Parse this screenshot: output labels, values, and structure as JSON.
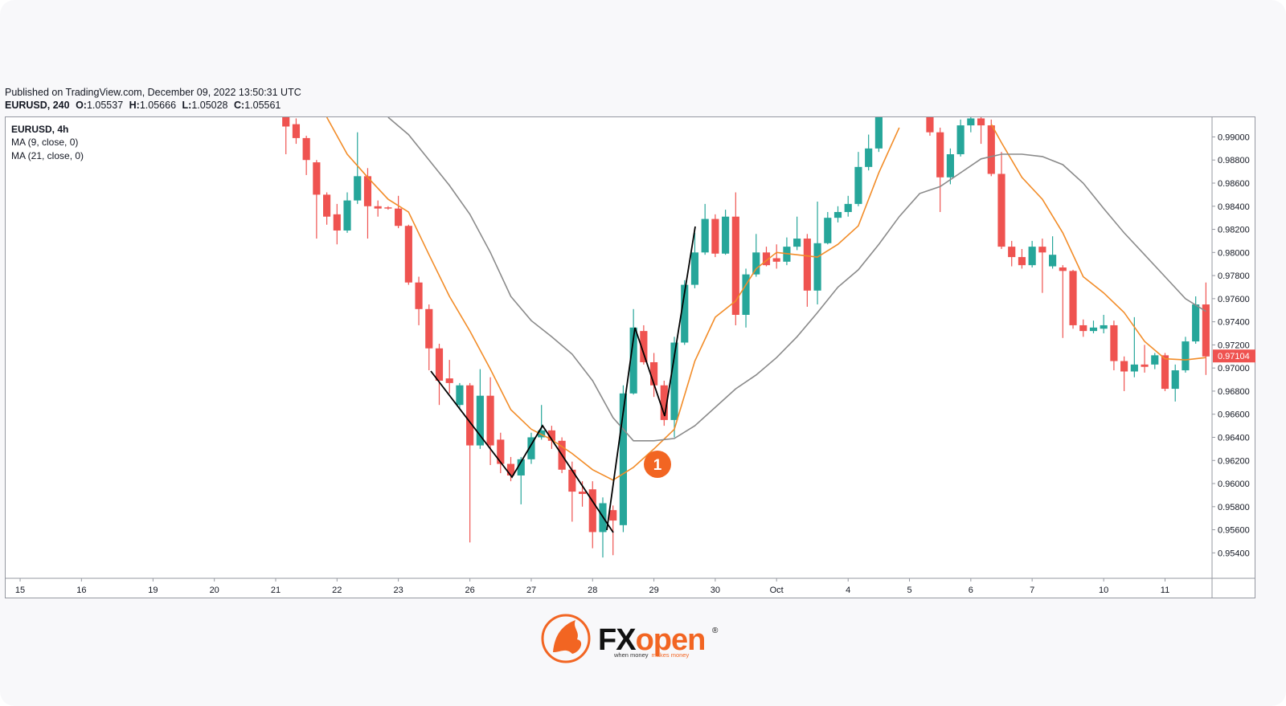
{
  "header": {
    "published": "Published on TradingView.com, December 09, 2022 13:50:31 UTC",
    "symbol_line": "EURUSD, 240",
    "ohlc": [
      {
        "key": "O:",
        "value": "1.05537"
      },
      {
        "key": "H:",
        "value": "1.05666"
      },
      {
        "key": "L:",
        "value": "1.05028"
      },
      {
        "key": "C:",
        "value": "1.05561"
      }
    ]
  },
  "chart_data": {
    "type": "candlestick",
    "symbol": "EURUSD, 4h",
    "x": [
      26,
      27,
      28,
      29,
      30,
      31,
      32,
      33,
      34,
      35,
      36,
      37,
      38,
      39,
      40,
      41,
      42,
      43,
      44,
      45,
      46,
      47,
      48,
      49,
      50,
      51,
      52,
      53,
      54,
      55,
      56,
      57,
      58,
      59,
      60,
      61,
      62,
      63,
      64,
      65,
      66,
      67,
      68,
      69,
      70,
      71,
      72,
      73,
      74,
      75,
      76,
      77,
      78,
      79,
      80,
      81,
      82,
      83,
      84,
      89,
      90,
      91,
      92,
      93,
      94,
      95,
      96,
      97,
      98,
      99,
      100,
      101,
      102,
      103,
      104,
      105,
      106,
      107,
      108,
      109,
      110,
      111,
      112,
      113,
      114,
      115,
      116
    ],
    "open": [
      0.9922,
      0.9911,
      0.9899,
      0.9878,
      0.985,
      0.9833,
      0.9819,
      0.9845,
      0.9866,
      0.984,
      0.9839,
      0.9838,
      0.9823,
      0.9774,
      0.9751,
      0.9717,
      0.9691,
      0.9668,
      0.9685,
      0.9633,
      0.9676,
      0.9638,
      0.9617,
      0.9607,
      0.9621,
      0.964,
      0.9646,
      0.9637,
      0.9612,
      0.9593,
      0.9595,
      0.9558,
      0.9577,
      0.9564,
      0.9678,
      0.9732,
      0.9705,
      0.9685,
      0.9655,
      0.9722,
      0.9772,
      0.98,
      0.9829,
      0.9799,
      0.9831,
      0.9746,
      0.9781,
      0.98,
      0.9795,
      0.9792,
      0.9805,
      0.9812,
      0.9767,
      0.9808,
      0.983,
      0.9835,
      0.9842,
      0.9874,
      0.989,
      0.9922,
      0.9904,
      0.9865,
      0.9885,
      0.991,
      0.9916,
      0.991,
      0.9868,
      0.9805,
      0.9796,
      0.9789,
      0.9805,
      0.9788,
      0.9787,
      0.9784,
      0.9737,
      0.9732,
      0.9734,
      0.9737,
      0.9706,
      0.9697,
      0.9703,
      0.9703,
      0.9711,
      0.9682,
      0.9698,
      0.9723,
      0.9755
    ],
    "high": [
      0.9928,
      0.9916,
      0.9901,
      0.988,
      0.9852,
      0.9842,
      0.9852,
      0.9904,
      0.9873,
      0.9845,
      0.984,
      0.9849,
      0.9824,
      0.9779,
      0.9755,
      0.9721,
      0.9707,
      0.9687,
      0.9687,
      0.9699,
      0.9692,
      0.9644,
      0.9623,
      0.9623,
      0.9644,
      0.9668,
      0.965,
      0.964,
      0.9619,
      0.9602,
      0.9602,
      0.9588,
      0.9581,
      0.9685,
      0.9751,
      0.9737,
      0.9713,
      0.9689,
      0.9727,
      0.9776,
      0.9817,
      0.9842,
      0.9833,
      0.9837,
      0.9852,
      0.9786,
      0.9816,
      0.9805,
      0.9807,
      0.9813,
      0.9831,
      0.9816,
      0.9844,
      0.9835,
      0.984,
      0.9849,
      0.9887,
      0.9902,
      0.9928,
      0.9928,
      0.9908,
      0.989,
      0.9915,
      0.9919,
      0.9922,
      0.9915,
      0.9887,
      0.981,
      0.9803,
      0.981,
      0.9812,
      0.9814,
      0.9789,
      0.9785,
      0.9742,
      0.9741,
      0.9746,
      0.9741,
      0.971,
      0.9744,
      0.972,
      0.9713,
      0.9713,
      0.9703,
      0.9727,
      0.9762,
      0.9774
    ],
    "low": [
      0.9885,
      0.9894,
      0.9867,
      0.9812,
      0.9824,
      0.9807,
      0.9817,
      0.9842,
      0.9812,
      0.9831,
      0.9837,
      0.9821,
      0.9772,
      0.9737,
      0.9698,
      0.9668,
      0.9678,
      0.9664,
      0.9549,
      0.963,
      0.9616,
      0.9609,
      0.9602,
      0.9582,
      0.9617,
      0.9638,
      0.963,
      0.9609,
      0.9567,
      0.958,
      0.9544,
      0.9536,
      0.9538,
      0.9558,
      0.9677,
      0.9703,
      0.9675,
      0.965,
      0.964,
      0.972,
      0.9769,
      0.9798,
      0.9796,
      0.9798,
      0.9737,
      0.9735,
      0.9779,
      0.9788,
      0.9786,
      0.9789,
      0.9802,
      0.9753,
      0.9755,
      0.9807,
      0.9826,
      0.9831,
      0.984,
      0.9871,
      0.9887,
      0.9901,
      0.9835,
      0.9859,
      0.9883,
      0.9904,
      0.9894,
      0.9866,
      0.9803,
      0.9788,
      0.9786,
      0.9787,
      0.9765,
      0.9786,
      0.9726,
      0.9734,
      0.9727,
      0.973,
      0.973,
      0.9698,
      0.968,
      0.9692,
      0.9696,
      0.9699,
      0.968,
      0.9671,
      0.9696,
      0.9721,
      0.9694
    ],
    "close": [
      0.9909,
      0.9899,
      0.988,
      0.985,
      0.9831,
      0.9819,
      0.9845,
      0.9866,
      0.984,
      0.9838,
      0.9838,
      0.9823,
      0.9774,
      0.9751,
      0.9717,
      0.9689,
      0.9687,
      0.9685,
      0.9633,
      0.9676,
      0.9633,
      0.9617,
      0.9607,
      0.9621,
      0.964,
      0.9646,
      0.9637,
      0.9612,
      0.9593,
      0.9591,
      0.9558,
      0.9583,
      0.9568,
      0.9678,
      0.9735,
      0.9705,
      0.9685,
      0.9655,
      0.9722,
      0.9772,
      0.98,
      0.9829,
      0.9799,
      0.9831,
      0.9746,
      0.9781,
      0.98,
      0.9789,
      0.9792,
      0.9805,
      0.9812,
      0.9767,
      0.9808,
      0.983,
      0.9835,
      0.9842,
      0.9874,
      0.989,
      0.9922,
      0.9904,
      0.9865,
      0.9885,
      0.991,
      0.9916,
      0.991,
      0.9868,
      0.9805,
      0.9796,
      0.9789,
      0.9805,
      0.98,
      0.9798,
      0.9784,
      0.9737,
      0.9732,
      0.9735,
      0.9737,
      0.9706,
      0.9697,
      0.9703,
      0.9701,
      0.9711,
      0.9682,
      0.9698,
      0.9723,
      0.9755,
      0.971
    ],
    "up_color": "#26a69a",
    "down_color": "#ef5350",
    "series": [
      {
        "name": "MA (9, close, 0)",
        "color": "#f28c28",
        "x": [
          30,
          31,
          32,
          34,
          36,
          38,
          40,
          42,
          44,
          46,
          48,
          50,
          52,
          54,
          56,
          58,
          60,
          62,
          64,
          66,
          68,
          70,
          72,
          74,
          76,
          78,
          80,
          82,
          84,
          86,
          90,
          95,
          96,
          98,
          100,
          102,
          104,
          106,
          108,
          110,
          112,
          114,
          116
        ],
        "values": [
          0.9917,
          0.9901,
          0.9885,
          0.9865,
          0.9846,
          0.9835,
          0.9798,
          0.9762,
          0.9732,
          0.9699,
          0.9664,
          0.9647,
          0.9638,
          0.9626,
          0.9612,
          0.9603,
          0.9614,
          0.963,
          0.9647,
          0.9706,
          0.9744,
          0.9758,
          0.9786,
          0.98,
          0.9798,
          0.9796,
          0.9807,
          0.9823,
          0.9869,
          0.9908,
          null,
          0.9911,
          0.9895,
          0.9865,
          0.9846,
          0.9817,
          0.9779,
          0.9765,
          0.9748,
          0.9723,
          0.9708,
          0.9707,
          0.9709
        ]
      },
      {
        "name": "MA (21, close, 0)",
        "color": "#8a8a8a",
        "x": [
          36,
          38,
          40,
          42,
          44,
          46,
          48,
          50,
          52,
          54,
          56,
          58,
          60,
          62,
          64,
          66,
          68,
          70,
          72,
          74,
          76,
          78,
          80,
          82,
          84,
          86,
          88,
          90,
          92,
          94,
          96,
          98,
          100,
          102,
          104,
          106,
          108,
          110,
          112,
          114,
          116
        ],
        "values": [
          0.9917,
          0.9902,
          0.988,
          0.9858,
          0.9833,
          0.98,
          0.9762,
          0.9741,
          0.9727,
          0.9712,
          0.9689,
          0.9657,
          0.9637,
          0.9637,
          0.9639,
          0.965,
          0.9666,
          0.9682,
          0.9694,
          0.9709,
          0.9727,
          0.9748,
          0.977,
          0.9785,
          0.9807,
          0.9831,
          0.9851,
          0.9857,
          0.9869,
          0.9881,
          0.9885,
          0.9885,
          0.9883,
          0.9876,
          0.986,
          0.9838,
          0.9817,
          0.9798,
          0.9779,
          0.976,
          0.9749
        ]
      }
    ],
    "xlim": [
      -1.34,
      116.6
    ],
    "xticks": [
      {
        "value": 0,
        "label": "15"
      },
      {
        "value": 6,
        "label": "16"
      },
      {
        "value": 13,
        "label": "19"
      },
      {
        "value": 19,
        "label": "20"
      },
      {
        "value": 25,
        "label": "21"
      },
      {
        "value": 31,
        "label": "22"
      },
      {
        "value": 37,
        "label": "23"
      },
      {
        "value": 44,
        "label": "26"
      },
      {
        "value": 50,
        "label": "27"
      },
      {
        "value": 56,
        "label": "28"
      },
      {
        "value": 62,
        "label": "29"
      },
      {
        "value": 68,
        "label": "30"
      },
      {
        "value": 74,
        "label": "Oct"
      },
      {
        "value": 81,
        "label": "4"
      },
      {
        "value": 87,
        "label": "5"
      },
      {
        "value": 93,
        "label": "6"
      },
      {
        "value": 99,
        "label": "7"
      },
      {
        "value": 106,
        "label": "10"
      },
      {
        "value": 112,
        "label": "11"
      }
    ],
    "ylim": [
      0.9518,
      0.9917
    ],
    "yticks": [
      {
        "value": 0.954,
        "label": "0.95400"
      },
      {
        "value": 0.956,
        "label": "0.95600"
      },
      {
        "value": 0.958,
        "label": "0.95800"
      },
      {
        "value": 0.96,
        "label": "0.96000"
      },
      {
        "value": 0.962,
        "label": "0.96200"
      },
      {
        "value": 0.964,
        "label": "0.96400"
      },
      {
        "value": 0.966,
        "label": "0.96600"
      },
      {
        "value": 0.968,
        "label": "0.96800"
      },
      {
        "value": 0.97,
        "label": "0.97000"
      },
      {
        "value": 0.972,
        "label": "0.97200"
      },
      {
        "value": 0.974,
        "label": "0.97400"
      },
      {
        "value": 0.976,
        "label": "0.97600"
      },
      {
        "value": 0.978,
        "label": "0.97800"
      },
      {
        "value": 0.98,
        "label": "0.98000"
      },
      {
        "value": 0.982,
        "label": "0.98200"
      },
      {
        "value": 0.984,
        "label": "0.98400"
      },
      {
        "value": 0.986,
        "label": "0.98600"
      },
      {
        "value": 0.988,
        "label": "0.98800"
      },
      {
        "value": 0.99,
        "label": "0.99000"
      }
    ],
    "last_price": 0.97104,
    "last_price_color": "#ef5350",
    "annotation": "1",
    "annotation_color": "#f26522"
  },
  "logo": {
    "brand_a": "FX",
    "brand_b": "open",
    "mark": "®",
    "tagline_a": "when money",
    "tagline_b": "makes money"
  }
}
